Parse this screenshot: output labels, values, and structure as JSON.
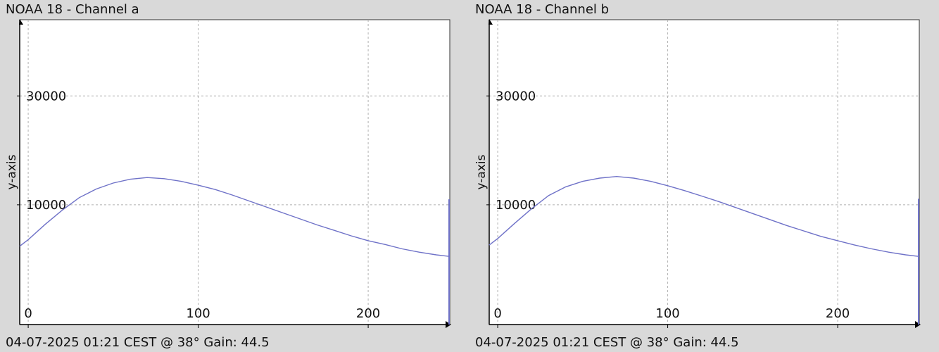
{
  "colors": {
    "background": "#d9d9d9",
    "plot_background": "#ffffff",
    "series_line": "#6f72c8",
    "grid": "#b0b0b0"
  },
  "chart_data": [
    {
      "type": "line",
      "title": "NOAA 18 - Channel a",
      "footer": "04-07-2025 01:21 CEST @ 38° Gain: 44.5",
      "ylabel": "y-axis",
      "xlabel": "",
      "xlim": [
        -5,
        248
      ],
      "ylim": [
        -12000,
        44000
      ],
      "x_ticks": [
        {
          "value": 0,
          "label": "0"
        },
        {
          "value": 100,
          "label": "100"
        },
        {
          "value": 200,
          "label": "200"
        }
      ],
      "y_ticks": [
        {
          "value": 10000,
          "label": "10000"
        },
        {
          "value": 30000,
          "label": "30000"
        }
      ],
      "grid": true,
      "series": [
        {
          "x": [
            -5,
            0,
            10,
            20,
            30,
            40,
            50,
            60,
            70,
            80,
            90,
            100,
            110,
            120,
            130,
            140,
            150,
            160,
            170,
            180,
            190,
            200,
            210,
            220,
            230,
            240,
            248
          ],
          "y": [
            2400,
            3600,
            6400,
            9000,
            11300,
            12900,
            14000,
            14700,
            15000,
            14800,
            14300,
            13600,
            12800,
            11800,
            10700,
            9600,
            8500,
            7400,
            6300,
            5300,
            4300,
            3400,
            2700,
            1900,
            1300,
            800,
            500
          ]
        }
      ],
      "end_spike": {
        "x": 248,
        "y": 11000
      }
    },
    {
      "type": "line",
      "title": "NOAA 18 - Channel b",
      "footer": "04-07-2025 01:21 CEST @ 38° Gain: 44.5",
      "ylabel": "y-axis",
      "xlabel": "",
      "xlim": [
        -5,
        248
      ],
      "ylim": [
        -12000,
        44000
      ],
      "x_ticks": [
        {
          "value": 0,
          "label": "0"
        },
        {
          "value": 100,
          "label": "100"
        },
        {
          "value": 200,
          "label": "200"
        }
      ],
      "y_ticks": [
        {
          "value": 10000,
          "label": "10000"
        },
        {
          "value": 30000,
          "label": "30000"
        }
      ],
      "grid": true,
      "series": [
        {
          "x": [
            -5,
            0,
            10,
            20,
            30,
            40,
            50,
            60,
            70,
            80,
            90,
            100,
            110,
            120,
            130,
            140,
            150,
            160,
            170,
            180,
            190,
            200,
            210,
            220,
            230,
            240,
            248
          ],
          "y": [
            2600,
            3800,
            6600,
            9300,
            11700,
            13300,
            14300,
            14900,
            15200,
            14900,
            14300,
            13500,
            12600,
            11600,
            10600,
            9500,
            8400,
            7300,
            6200,
            5200,
            4200,
            3400,
            2600,
            1900,
            1300,
            800,
            500
          ]
        }
      ],
      "end_spike": {
        "x": 248,
        "y": 11100
      }
    }
  ]
}
